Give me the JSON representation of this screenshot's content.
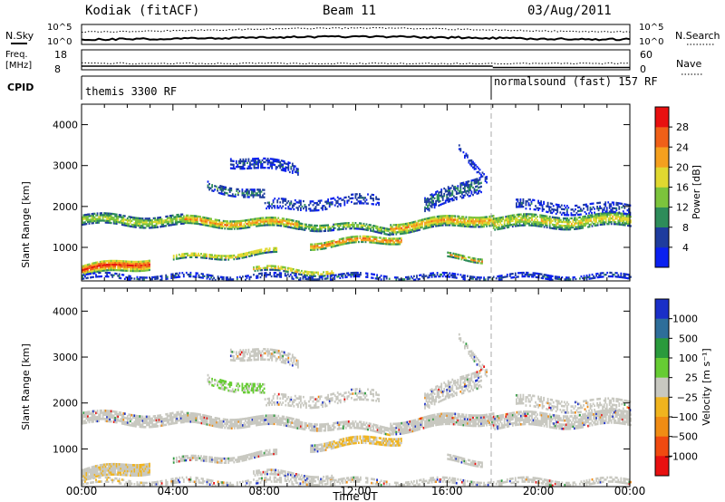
{
  "header": {
    "station": "Kodiak (fitACF)",
    "beam": "Beam 11",
    "date": "03/Aug/2011"
  },
  "noise_panel": {
    "left_label": "N.Sky",
    "right_label": "N.Search",
    "left_ticks": [
      "10^5",
      "10^0"
    ],
    "right_ticks": [
      "10^5",
      "10^0"
    ]
  },
  "freq_panel": {
    "left_label_1": "Freq.",
    "left_label_2": "[MHz]",
    "right_label": "Nave",
    "left_ticks": [
      "18",
      "8"
    ],
    "right_ticks": [
      "60",
      "0"
    ]
  },
  "cpid_panel": {
    "label": "CPID",
    "segments": [
      {
        "start_hour": 0,
        "text": "themis 3300 RF"
      },
      {
        "start_hour": 18,
        "text": "normalsound (fast) 157 RF"
      }
    ]
  },
  "time_axis": {
    "label": "Time UT",
    "ticks": [
      "00:00",
      "04:00",
      "08:00",
      "12:00",
      "16:00",
      "20:00",
      "00:00"
    ],
    "range_hours": [
      0,
      24
    ]
  },
  "range_axis": {
    "label": "Slant Range [km]",
    "ticks": [
      "1000",
      "2000",
      "3000",
      "4000"
    ],
    "range_km": [
      180,
      4500
    ]
  },
  "chart_data": [
    {
      "type": "heatmap",
      "quantity": "power",
      "ylabel": "Slant Range [km]",
      "xlabel": "",
      "colorbar_label": "Power [dB]",
      "colorbar_ticks": [
        "4",
        "8",
        "12",
        "16",
        "20",
        "24",
        "28"
      ],
      "colorbar_colors": [
        "#0a20f0",
        "#1e3c9e",
        "#2e8c5a",
        "#7cc43c",
        "#e0d830",
        "#f5a01e",
        "#f06018",
        "#e81010"
      ]
    },
    {
      "type": "heatmap",
      "quantity": "velocity",
      "ylabel": "Slant Range [km]",
      "xlabel": "Time UT",
      "colorbar_label": "Velocity [m s⁻¹]",
      "colorbar_ticks": [
        "1000",
        "500",
        "100",
        "25",
        "−25",
        "−100",
        "−500",
        "−1000"
      ],
      "colorbar_colors": [
        "#1a2fc8",
        "#2e6e9a",
        "#2a9a3c",
        "#66cc33",
        "#c8c8c0",
        "#f0b41e",
        "#f08c14",
        "#f04a10",
        "#e81010"
      ]
    }
  ]
}
